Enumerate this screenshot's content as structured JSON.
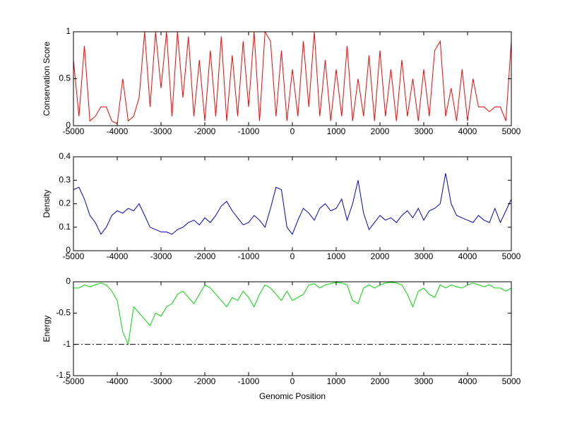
{
  "chart_data": [
    {
      "type": "line",
      "ylabel": "Conservation Score",
      "color": "#ff0000",
      "x": [
        -5000,
        -4875,
        -4750,
        -4625,
        -4500,
        -4375,
        -4250,
        -4125,
        -4000,
        -3875,
        -3750,
        -3625,
        -3500,
        -3375,
        -3250,
        -3125,
        -3000,
        -2875,
        -2750,
        -2625,
        -2500,
        -2375,
        -2250,
        -2125,
        -2000,
        -1875,
        -1750,
        -1625,
        -1500,
        -1375,
        -1250,
        -1125,
        -1000,
        -875,
        -750,
        -625,
        -500,
        -375,
        -250,
        -125,
        0,
        125,
        250,
        375,
        500,
        625,
        750,
        875,
        1000,
        1125,
        1250,
        1375,
        1500,
        1625,
        1750,
        1875,
        2000,
        2125,
        2250,
        2375,
        2500,
        2625,
        2750,
        2875,
        3000,
        3125,
        3250,
        3375,
        3500,
        3625,
        3750,
        3875,
        4000,
        4125,
        4250,
        4375,
        4500,
        4625,
        4750,
        4875,
        5000
      ],
      "values": [
        0.7,
        0.1,
        0.85,
        0.05,
        0.1,
        0.2,
        0.2,
        0.05,
        0.02,
        0.5,
        0.05,
        0.1,
        0.3,
        1,
        0.2,
        1,
        0.4,
        1,
        0.1,
        1,
        0.3,
        0.95,
        0.1,
        0.7,
        0.05,
        0.8,
        0.1,
        0.95,
        0.05,
        0.75,
        0.1,
        0.9,
        0.2,
        1,
        0.05,
        1,
        0.9,
        0.1,
        0.8,
        0.05,
        0.6,
        0.1,
        0.9,
        0.2,
        1,
        0.1,
        0.7,
        0.05,
        0.6,
        0.1,
        0.85,
        0.05,
        0.5,
        0.1,
        0.75,
        0.05,
        0.8,
        0.1,
        0.6,
        0.05,
        0.7,
        0.1,
        0.5,
        0.05,
        0.6,
        0.1,
        0.8,
        0.9,
        0.1,
        0.4,
        0.05,
        0.6,
        0.05,
        0.5,
        0.2,
        0.2,
        0.15,
        0.2,
        0.2,
        0.05,
        0.9
      ],
      "xlim": [
        -5000,
        5000
      ],
      "xticks": [
        -5000,
        -4000,
        -3000,
        -2000,
        -1000,
        0,
        1000,
        2000,
        3000,
        4000,
        5000
      ],
      "ylim": [
        0,
        1
      ],
      "yticks": [
        0,
        0.5,
        1
      ]
    },
    {
      "type": "line",
      "ylabel": "Density",
      "color": "#0000cc",
      "x": [
        -5000,
        -4875,
        -4750,
        -4625,
        -4500,
        -4375,
        -4250,
        -4125,
        -4000,
        -3875,
        -3750,
        -3625,
        -3500,
        -3375,
        -3250,
        -3125,
        -3000,
        -2875,
        -2750,
        -2625,
        -2500,
        -2375,
        -2250,
        -2125,
        -2000,
        -1875,
        -1750,
        -1625,
        -1500,
        -1375,
        -1250,
        -1125,
        -1000,
        -875,
        -750,
        -625,
        -500,
        -375,
        -250,
        -125,
        0,
        125,
        250,
        375,
        500,
        625,
        750,
        875,
        1000,
        1125,
        1250,
        1375,
        1500,
        1625,
        1750,
        1875,
        2000,
        2125,
        2250,
        2375,
        2500,
        2625,
        2750,
        2875,
        3000,
        3125,
        3250,
        3375,
        3500,
        3625,
        3750,
        3875,
        4000,
        4125,
        4250,
        4375,
        4500,
        4625,
        4750,
        4875,
        5000
      ],
      "values": [
        0.26,
        0.27,
        0.22,
        0.15,
        0.12,
        0.07,
        0.1,
        0.15,
        0.17,
        0.16,
        0.18,
        0.17,
        0.2,
        0.15,
        0.1,
        0.09,
        0.08,
        0.08,
        0.07,
        0.09,
        0.1,
        0.12,
        0.13,
        0.11,
        0.14,
        0.12,
        0.15,
        0.19,
        0.21,
        0.17,
        0.14,
        0.11,
        0.12,
        0.15,
        0.13,
        0.1,
        0.18,
        0.27,
        0.26,
        0.1,
        0.07,
        0.13,
        0.18,
        0.16,
        0.13,
        0.18,
        0.2,
        0.17,
        0.18,
        0.22,
        0.13,
        0.2,
        0.3,
        0.16,
        0.09,
        0.12,
        0.15,
        0.13,
        0.14,
        0.12,
        0.15,
        0.17,
        0.14,
        0.18,
        0.13,
        0.17,
        0.18,
        0.2,
        0.33,
        0.2,
        0.15,
        0.14,
        0.13,
        0.12,
        0.15,
        0.13,
        0.12,
        0.18,
        0.12,
        0.17,
        0.22
      ],
      "xlim": [
        -5000,
        5000
      ],
      "xticks": [
        -5000,
        -4000,
        -3000,
        -2000,
        -1000,
        0,
        1000,
        2000,
        3000,
        4000,
        5000
      ],
      "ylim": [
        0,
        0.4
      ],
      "yticks": [
        0,
        0.1,
        0.2,
        0.3,
        0.4
      ]
    },
    {
      "type": "line",
      "xlabel": "Genomic Position",
      "ylabel": "Energy",
      "color": "#00dd00",
      "x": [
        -5000,
        -4875,
        -4750,
        -4625,
        -4500,
        -4375,
        -4250,
        -4125,
        -4000,
        -3875,
        -3750,
        -3625,
        -3500,
        -3375,
        -3250,
        -3125,
        -3000,
        -2875,
        -2750,
        -2625,
        -2500,
        -2375,
        -2250,
        -2125,
        -2000,
        -1875,
        -1750,
        -1625,
        -1500,
        -1375,
        -1250,
        -1125,
        -1000,
        -875,
        -750,
        -625,
        -500,
        -375,
        -250,
        -125,
        0,
        125,
        250,
        375,
        500,
        625,
        750,
        875,
        1000,
        1125,
        1250,
        1375,
        1500,
        1625,
        1750,
        1875,
        2000,
        2125,
        2250,
        2375,
        2500,
        2625,
        2750,
        2875,
        3000,
        3125,
        3250,
        3375,
        3500,
        3625,
        3750,
        3875,
        4000,
        4125,
        4250,
        4375,
        4500,
        4625,
        4750,
        4875,
        5000
      ],
      "values": [
        -0.1,
        -0.1,
        -0.05,
        -0.08,
        -0.05,
        -0.02,
        -0.05,
        -0.15,
        -0.3,
        -0.8,
        -1.0,
        -0.4,
        -0.5,
        -0.6,
        -0.7,
        -0.5,
        -0.55,
        -0.4,
        -0.35,
        -0.2,
        -0.15,
        -0.25,
        -0.35,
        -0.2,
        -0.05,
        -0.1,
        -0.2,
        -0.3,
        -0.4,
        -0.25,
        -0.3,
        -0.15,
        -0.25,
        -0.4,
        -0.2,
        -0.05,
        -0.1,
        -0.2,
        -0.3,
        -0.15,
        -0.3,
        -0.25,
        -0.2,
        -0.05,
        -0.03,
        -0.1,
        -0.05,
        -0.03,
        -0.01,
        -0.02,
        -0.05,
        -0.3,
        -0.35,
        -0.1,
        -0.05,
        -0.1,
        -0.05,
        -0.02,
        -0.01,
        -0.02,
        -0.05,
        -0.2,
        -0.4,
        -0.15,
        -0.1,
        -0.2,
        -0.25,
        -0.05,
        -0.1,
        -0.05,
        -0.08,
        -0.1,
        -0.05,
        -0.02,
        -0.05,
        -0.08,
        -0.05,
        -0.1,
        -0.1,
        -0.15,
        -0.1
      ],
      "hline": {
        "value": -1,
        "color": "#000000",
        "dash": "dash-dot"
      },
      "xlim": [
        -5000,
        5000
      ],
      "xticks": [
        -5000,
        -4000,
        -3000,
        -2000,
        -1000,
        0,
        1000,
        2000,
        3000,
        4000,
        5000
      ],
      "ylim": [
        -1.5,
        0
      ],
      "yticks": [
        -1.5,
        -1,
        -0.5,
        0
      ]
    }
  ]
}
